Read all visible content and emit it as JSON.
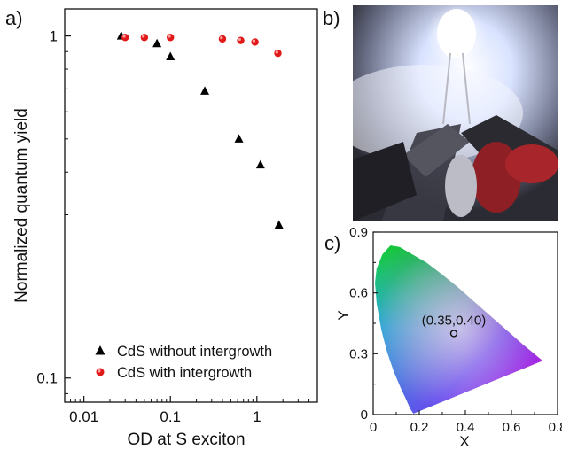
{
  "panels": {
    "a": "a)",
    "b": "b)",
    "c": "c)"
  },
  "chart_data": [
    {
      "type": "scatter",
      "xlabel": "OD at S exciton",
      "ylabel": "Normalized  quantum yield",
      "xscale": "log",
      "yscale": "log",
      "xlim": [
        0.006,
        5
      ],
      "ylim": [
        0.085,
        1.2
      ],
      "x_ticks": [
        0.01,
        0.1,
        1
      ],
      "x_tick_labels": [
        "0.01",
        "0.1",
        "1"
      ],
      "y_ticks": [
        0.1,
        1
      ],
      "y_tick_labels": [
        "0.1",
        "1"
      ],
      "legend_position": "bottom-left",
      "series": [
        {
          "name": "CdS without intergrowth",
          "marker": "triangle",
          "color": "#000000",
          "points": [
            [
              0.027,
              1.0
            ],
            [
              0.07,
              0.95
            ],
            [
              0.1,
              0.87
            ],
            [
              0.25,
              0.69
            ],
            [
              0.62,
              0.5
            ],
            [
              1.1,
              0.42
            ],
            [
              1.8,
              0.28
            ]
          ]
        },
        {
          "name": "CdS with intergrowth",
          "marker": "circle",
          "color": "#e01818",
          "points": [
            [
              0.03,
              0.99
            ],
            [
              0.05,
              0.99
            ],
            [
              0.1,
              0.99
            ],
            [
              0.4,
              0.98
            ],
            [
              0.65,
              0.97
            ],
            [
              0.95,
              0.96
            ],
            [
              1.75,
              0.89
            ]
          ]
        }
      ]
    },
    {
      "type": "scatter",
      "xlabel": "X",
      "ylabel": "Y",
      "xlim": [
        0,
        0.8
      ],
      "ylim": [
        0,
        0.9
      ],
      "x_ticks": [
        0,
        0.2,
        0.4,
        0.6,
        0.8
      ],
      "x_tick_labels": [
        "0",
        "0.2",
        "0.4",
        "0.6",
        "0.8"
      ],
      "y_ticks": [
        0,
        0.3,
        0.6,
        0.9
      ],
      "y_tick_labels": [
        "0",
        "0.3",
        "0.6",
        "0.9"
      ],
      "point": {
        "x": 0.35,
        "y": 0.4,
        "label": "(0.35,0.40)"
      }
    }
  ]
}
